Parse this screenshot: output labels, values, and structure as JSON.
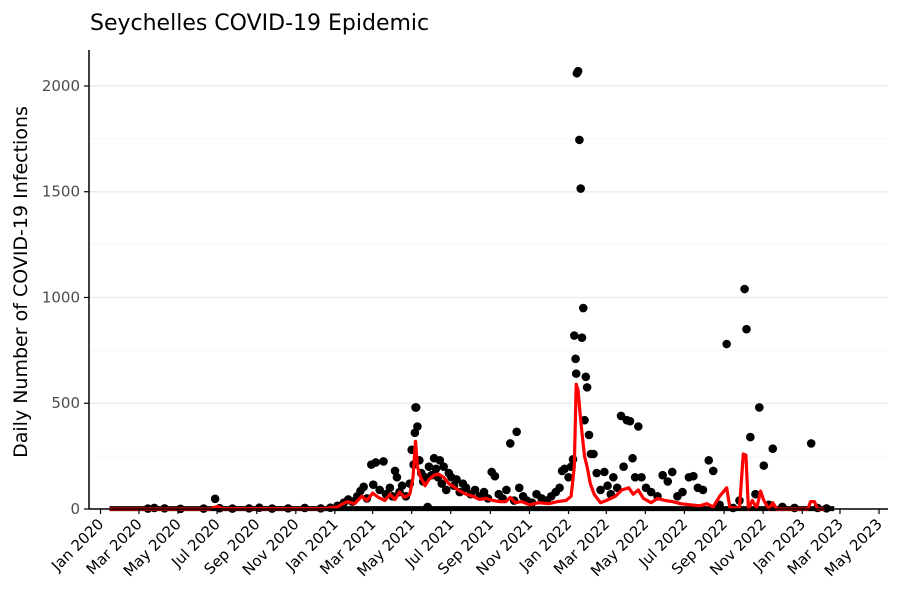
{
  "chart_data": {
    "type": "scatter",
    "title": "Seychelles COVID-19 Epidemic",
    "xlabel": "",
    "ylabel": "Daily Number of COVID-19 Infections",
    "x_tick_labels": [
      "Jan 2020",
      "Mar 2020",
      "May 2020",
      "Jul 2020",
      "Sep 2020",
      "Nov 2020",
      "Jan 2021",
      "Mar 2021",
      "May 2021",
      "Jul 2021",
      "Sep 2021",
      "Nov 2021",
      "Jan 2022",
      "Mar 2022",
      "May 2022",
      "Jul 2022",
      "Sep 2022",
      "Nov 2022",
      "Jan 2023",
      "Mar 2023",
      "May 2023"
    ],
    "x_tick_dates": [
      "2020-01-01",
      "2020-03-01",
      "2020-05-01",
      "2020-07-01",
      "2020-09-01",
      "2020-11-01",
      "2021-01-01",
      "2021-03-01",
      "2021-05-01",
      "2021-07-01",
      "2021-09-01",
      "2021-11-01",
      "2022-01-01",
      "2022-03-01",
      "2022-05-01",
      "2022-07-01",
      "2022-09-01",
      "2022-11-01",
      "2023-01-01",
      "2023-03-01",
      "2023-05-01"
    ],
    "xlim": [
      "2019-12-14",
      "2023-05-15"
    ],
    "y_tick_labels": [
      "0",
      "500",
      "1000",
      "1500",
      "2000"
    ],
    "y_ticks": [
      0,
      500,
      1000,
      1500,
      2000
    ],
    "ylim": [
      0,
      2170
    ],
    "grid": "horizontal",
    "legend": "none",
    "series": [
      {
        "kind": "points",
        "color": "#000000",
        "points": [
          [
            "2020-03-15",
            2
          ],
          [
            "2020-03-25",
            5
          ],
          [
            "2020-04-10",
            3
          ],
          [
            "2020-05-05",
            1
          ],
          [
            "2020-06-10",
            2
          ],
          [
            "2020-06-28",
            48
          ],
          [
            "2020-07-05",
            4
          ],
          [
            "2020-07-25",
            2
          ],
          [
            "2020-08-20",
            3
          ],
          [
            "2020-09-05",
            6
          ],
          [
            "2020-09-25",
            2
          ],
          [
            "2020-10-20",
            3
          ],
          [
            "2020-11-15",
            5
          ],
          [
            "2020-12-10",
            3
          ],
          [
            "2020-12-25",
            6
          ],
          [
            "2021-01-05",
            15
          ],
          [
            "2021-01-15",
            30
          ],
          [
            "2021-01-22",
            45
          ],
          [
            "2021-01-28",
            35
          ],
          [
            "2021-02-05",
            60
          ],
          [
            "2021-02-10",
            85
          ],
          [
            "2021-02-15",
            105
          ],
          [
            "2021-02-20",
            50
          ],
          [
            "2021-02-27",
            210
          ],
          [
            "2021-03-02",
            115
          ],
          [
            "2021-03-06",
            220
          ],
          [
            "2021-03-12",
            90
          ],
          [
            "2021-03-18",
            225
          ],
          [
            "2021-03-22",
            70
          ],
          [
            "2021-03-28",
            100
          ],
          [
            "2021-04-01",
            60
          ],
          [
            "2021-04-05",
            180
          ],
          [
            "2021-04-08",
            150
          ],
          [
            "2021-04-12",
            80
          ],
          [
            "2021-04-16",
            110
          ],
          [
            "2021-04-22",
            60
          ],
          [
            "2021-04-28",
            120
          ],
          [
            "2021-05-01",
            280
          ],
          [
            "2021-05-04",
            210
          ],
          [
            "2021-05-06",
            360
          ],
          [
            "2021-05-07",
            480
          ],
          [
            "2021-05-08",
            480
          ],
          [
            "2021-05-10",
            390
          ],
          [
            "2021-05-13",
            230
          ],
          [
            "2021-05-16",
            170
          ],
          [
            "2021-05-19",
            130
          ],
          [
            "2021-05-22",
            150
          ],
          [
            "2021-05-26",
            10
          ],
          [
            "2021-05-28",
            200
          ],
          [
            "2021-06-01",
            160
          ],
          [
            "2021-06-05",
            240
          ],
          [
            "2021-06-08",
            190
          ],
          [
            "2021-06-11",
            150
          ],
          [
            "2021-06-14",
            230
          ],
          [
            "2021-06-17",
            120
          ],
          [
            "2021-06-20",
            200
          ],
          [
            "2021-06-24",
            90
          ],
          [
            "2021-06-28",
            170
          ],
          [
            "2021-07-02",
            150
          ],
          [
            "2021-07-06",
            110
          ],
          [
            "2021-07-10",
            140
          ],
          [
            "2021-07-15",
            80
          ],
          [
            "2021-07-20",
            120
          ],
          [
            "2021-07-25",
            100
          ],
          [
            "2021-08-01",
            70
          ],
          [
            "2021-08-08",
            90
          ],
          [
            "2021-08-15",
            60
          ],
          [
            "2021-08-22",
            80
          ],
          [
            "2021-08-28",
            50
          ],
          [
            "2021-09-03",
            175
          ],
          [
            "2021-09-08",
            155
          ],
          [
            "2021-09-14",
            70
          ],
          [
            "2021-09-20",
            50
          ],
          [
            "2021-09-26",
            90
          ],
          [
            "2021-10-02",
            310
          ],
          [
            "2021-10-08",
            40
          ],
          [
            "2021-10-12",
            365
          ],
          [
            "2021-10-16",
            100
          ],
          [
            "2021-10-22",
            60
          ],
          [
            "2021-10-28",
            40
          ],
          [
            "2021-11-05",
            30
          ],
          [
            "2021-11-12",
            70
          ],
          [
            "2021-11-20",
            50
          ],
          [
            "2021-11-28",
            40
          ],
          [
            "2021-12-05",
            60
          ],
          [
            "2021-12-12",
            80
          ],
          [
            "2021-12-18",
            100
          ],
          [
            "2021-12-22",
            180
          ],
          [
            "2021-12-26",
            190
          ],
          [
            "2022-01-01",
            150
          ],
          [
            "2022-01-05",
            200
          ],
          [
            "2022-01-08",
            235
          ],
          [
            "2022-01-10",
            820
          ],
          [
            "2022-01-12",
            710
          ],
          [
            "2022-01-13",
            640
          ],
          [
            "2022-01-14",
            2060
          ],
          [
            "2022-01-16",
            2070
          ],
          [
            "2022-01-18",
            1745
          ],
          [
            "2022-01-20",
            1515
          ],
          [
            "2022-01-22",
            810
          ],
          [
            "2022-01-24",
            950
          ],
          [
            "2022-01-26",
            420
          ],
          [
            "2022-01-28",
            625
          ],
          [
            "2022-01-30",
            575
          ],
          [
            "2022-02-02",
            350
          ],
          [
            "2022-02-05",
            260
          ],
          [
            "2022-02-09",
            260
          ],
          [
            "2022-02-14",
            170
          ],
          [
            "2022-02-20",
            90
          ],
          [
            "2022-02-26",
            175
          ],
          [
            "2022-03-03",
            110
          ],
          [
            "2022-03-08",
            70
          ],
          [
            "2022-03-12",
            150
          ],
          [
            "2022-03-18",
            100
          ],
          [
            "2022-03-24",
            440
          ],
          [
            "2022-03-28",
            200
          ],
          [
            "2022-04-02",
            420
          ],
          [
            "2022-04-07",
            415
          ],
          [
            "2022-04-11",
            240
          ],
          [
            "2022-04-15",
            150
          ],
          [
            "2022-04-20",
            390
          ],
          [
            "2022-04-25",
            150
          ],
          [
            "2022-05-02",
            100
          ],
          [
            "2022-05-10",
            80
          ],
          [
            "2022-05-20",
            60
          ],
          [
            "2022-05-28",
            160
          ],
          [
            "2022-06-05",
            130
          ],
          [
            "2022-06-12",
            175
          ],
          [
            "2022-06-20",
            60
          ],
          [
            "2022-06-28",
            80
          ],
          [
            "2022-07-08",
            150
          ],
          [
            "2022-07-15",
            155
          ],
          [
            "2022-07-22",
            100
          ],
          [
            "2022-07-30",
            90
          ],
          [
            "2022-08-08",
            230
          ],
          [
            "2022-08-15",
            180
          ],
          [
            "2022-08-25",
            20
          ],
          [
            "2022-09-05",
            780
          ],
          [
            "2022-09-15",
            5
          ],
          [
            "2022-09-25",
            40
          ],
          [
            "2022-10-03",
            1040
          ],
          [
            "2022-10-06",
            850
          ],
          [
            "2022-10-12",
            340
          ],
          [
            "2022-10-20",
            70
          ],
          [
            "2022-10-26",
            480
          ],
          [
            "2022-11-02",
            205
          ],
          [
            "2022-11-10",
            20
          ],
          [
            "2022-11-16",
            285
          ],
          [
            "2022-12-01",
            10
          ],
          [
            "2022-12-20",
            5
          ],
          [
            "2023-01-15",
            310
          ],
          [
            "2023-01-25",
            5
          ],
          [
            "2023-02-08",
            3
          ]
        ]
      },
      {
        "kind": "line",
        "color": "#ff0000",
        "points": [
          [
            "2020-01-15",
            0
          ],
          [
            "2020-06-20",
            0
          ],
          [
            "2020-07-01",
            12
          ],
          [
            "2020-07-10",
            2
          ],
          [
            "2020-12-15",
            2
          ],
          [
            "2021-01-05",
            10
          ],
          [
            "2021-01-20",
            35
          ],
          [
            "2021-02-01",
            25
          ],
          [
            "2021-02-12",
            60
          ],
          [
            "2021-02-20",
            40
          ],
          [
            "2021-03-01",
            75
          ],
          [
            "2021-03-10",
            55
          ],
          [
            "2021-03-20",
            40
          ],
          [
            "2021-03-28",
            70
          ],
          [
            "2021-04-05",
            45
          ],
          [
            "2021-04-12",
            80
          ],
          [
            "2021-04-20",
            55
          ],
          [
            "2021-04-28",
            70
          ],
          [
            "2021-05-03",
            150
          ],
          [
            "2021-05-07",
            320
          ],
          [
            "2021-05-10",
            200
          ],
          [
            "2021-05-15",
            150
          ],
          [
            "2021-05-22",
            110
          ],
          [
            "2021-05-28",
            140
          ],
          [
            "2021-06-05",
            160
          ],
          [
            "2021-06-12",
            165
          ],
          [
            "2021-06-20",
            150
          ],
          [
            "2021-06-28",
            120
          ],
          [
            "2021-07-06",
            105
          ],
          [
            "2021-07-15",
            85
          ],
          [
            "2021-07-25",
            70
          ],
          [
            "2021-08-05",
            60
          ],
          [
            "2021-08-15",
            45
          ],
          [
            "2021-08-25",
            50
          ],
          [
            "2021-09-05",
            40
          ],
          [
            "2021-09-15",
            35
          ],
          [
            "2021-09-25",
            35
          ],
          [
            "2021-10-02",
            55
          ],
          [
            "2021-10-10",
            30
          ],
          [
            "2021-10-20",
            35
          ],
          [
            "2021-11-01",
            20
          ],
          [
            "2021-11-15",
            30
          ],
          [
            "2021-12-01",
            25
          ],
          [
            "2021-12-15",
            35
          ],
          [
            "2021-12-28",
            40
          ],
          [
            "2022-01-05",
            60
          ],
          [
            "2022-01-10",
            200
          ],
          [
            "2022-01-13",
            590
          ],
          [
            "2022-01-16",
            560
          ],
          [
            "2022-01-19",
            450
          ],
          [
            "2022-01-22",
            360
          ],
          [
            "2022-01-26",
            250
          ],
          [
            "2022-01-30",
            200
          ],
          [
            "2022-02-04",
            120
          ],
          [
            "2022-02-10",
            70
          ],
          [
            "2022-02-20",
            30
          ],
          [
            "2022-03-01",
            40
          ],
          [
            "2022-03-15",
            60
          ],
          [
            "2022-03-25",
            90
          ],
          [
            "2022-04-05",
            100
          ],
          [
            "2022-04-12",
            70
          ],
          [
            "2022-04-20",
            90
          ],
          [
            "2022-04-28",
            50
          ],
          [
            "2022-05-10",
            30
          ],
          [
            "2022-05-20",
            50
          ],
          [
            "2022-06-01",
            40
          ],
          [
            "2022-06-12",
            35
          ],
          [
            "2022-06-25",
            25
          ],
          [
            "2022-07-10",
            20
          ],
          [
            "2022-07-25",
            15
          ],
          [
            "2022-08-05",
            25
          ],
          [
            "2022-08-15",
            10
          ],
          [
            "2022-08-25",
            60
          ],
          [
            "2022-09-05",
            100
          ],
          [
            "2022-09-10",
            5
          ],
          [
            "2022-09-25",
            5
          ],
          [
            "2022-10-01",
            260
          ],
          [
            "2022-10-05",
            255
          ],
          [
            "2022-10-09",
            0
          ],
          [
            "2022-10-15",
            40
          ],
          [
            "2022-10-22",
            5
          ],
          [
            "2022-10-28",
            85
          ],
          [
            "2022-11-02",
            40
          ],
          [
            "2022-11-10",
            0
          ],
          [
            "2022-11-16",
            30
          ],
          [
            "2022-11-22",
            0
          ],
          [
            "2023-01-10",
            0
          ],
          [
            "2023-01-14",
            35
          ],
          [
            "2023-01-20",
            35
          ],
          [
            "2023-01-25",
            0
          ],
          [
            "2023-02-05",
            0
          ]
        ]
      }
    ]
  }
}
